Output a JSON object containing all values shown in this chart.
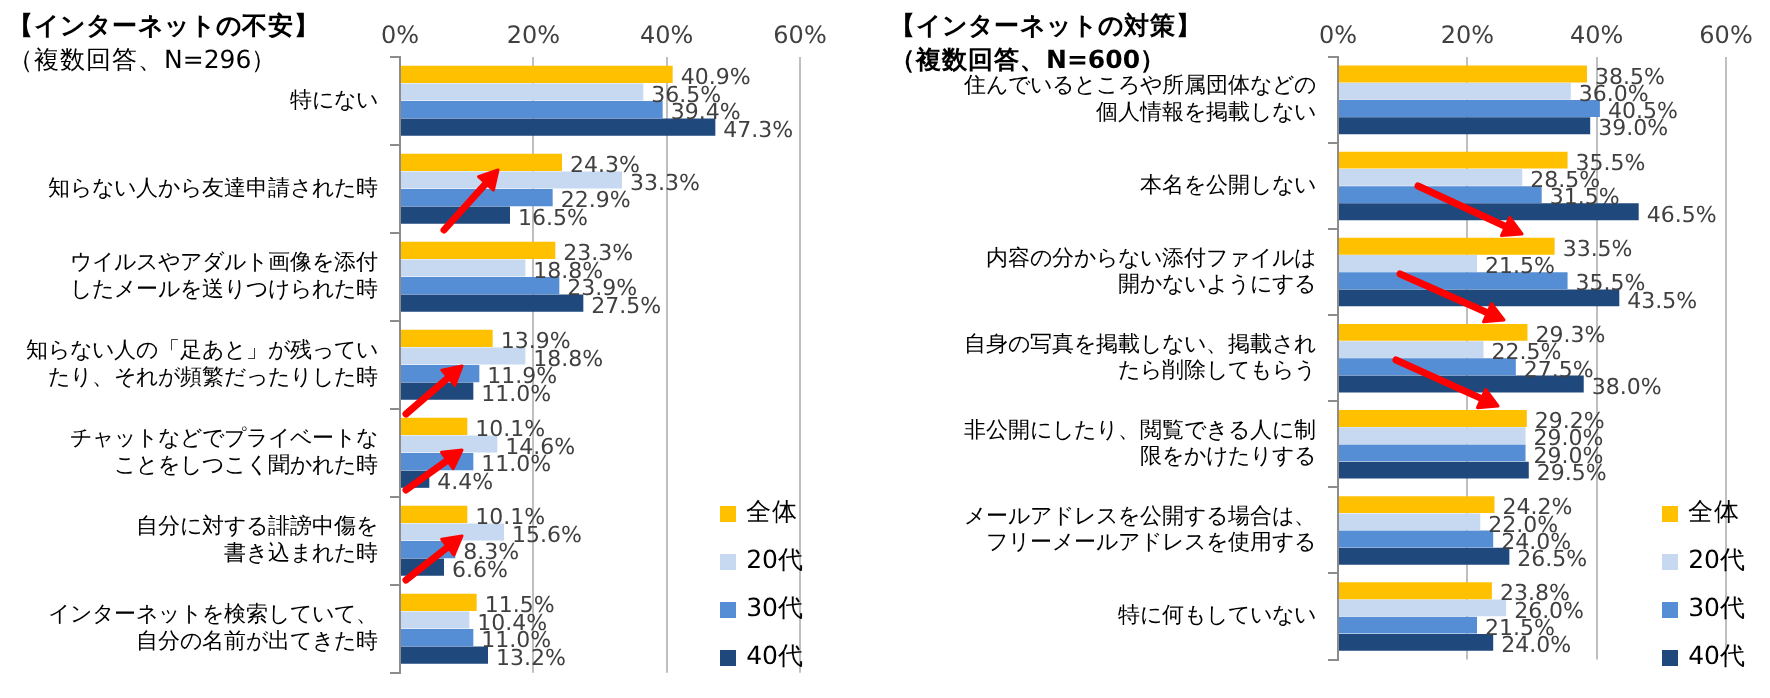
{
  "chart_data": [
    {
      "type": "bar",
      "orientation": "horizontal",
      "title": "【インターネットの不安】",
      "subtitle": "（複数回答、N=296）",
      "categories": [
        "特にない",
        "知らない人から友達申請された時",
        "ウイルスやアダルト画像を添付したメールを送りつけられた時",
        "知らない人の「足あと」が残っていたり、それが頻繁だったりした時",
        "チャットなどでプライベートなことをしつこく聞かれた時",
        "自分に対する誹謗中傷を書き込まれた時",
        "インターネットを検索していて、自分の名前が出てきた時"
      ],
      "series": [
        {
          "name": "全体",
          "color": "#ffc000",
          "values": [
            40.9,
            24.3,
            23.3,
            13.9,
            10.1,
            10.1,
            11.5
          ],
          "value_labels": [
            "40.9%",
            "24.3%",
            "23.3%",
            "13.9%",
            "10.1%",
            "10.1%",
            "11.5%"
          ]
        },
        {
          "name": "20代",
          "color": "#c6d9f1",
          "values": [
            36.5,
            33.3,
            18.8,
            18.8,
            14.6,
            15.6,
            10.4
          ],
          "value_labels": [
            "36.5%",
            "33.3%",
            "18.8%",
            "18.8%",
            "14.6%",
            "15.6%",
            "10.4%"
          ]
        },
        {
          "name": "30代",
          "color": "#558ed5",
          "values": [
            39.4,
            22.9,
            23.9,
            11.9,
            11.0,
            8.3,
            11.0
          ],
          "value_labels": [
            "39.4%",
            "22.9%",
            "23.9%",
            "11.9%",
            "11.0%",
            "8.3%",
            "11.0%"
          ]
        },
        {
          "name": "40代",
          "color": "#1f497d",
          "values": [
            47.3,
            16.5,
            27.5,
            11.0,
            4.4,
            6.6,
            13.2
          ],
          "value_labels": [
            "47.3%",
            "16.5%",
            "27.5%",
            "11.0%",
            "4.4%",
            "6.6%",
            "13.2%"
          ]
        }
      ],
      "xlim": [
        0,
        60
      ],
      "xticks": [
        {
          "value": 0,
          "label": "0%"
        },
        {
          "value": 20,
          "label": "20%"
        },
        {
          "value": 40,
          "label": "40%"
        },
        {
          "value": 60,
          "label": "60%"
        }
      ],
      "grid": "x",
      "legend": "bottom right"
    },
    {
      "type": "bar",
      "orientation": "horizontal",
      "title": "【インターネットの対策】",
      "subtitle": "（複数回答、N=600）",
      "categories": [
        "住んでいるところや所属団体などの個人情報を掲載しない",
        "本名を公開しない",
        "内容の分からない添付ファイルは開かないようにする",
        "自身の写真を掲載しない、掲載されたら削除してもらう",
        "非公開にしたり、閲覧できる人に制限をかけたりする",
        "メールアドレスを公開する場合は、フリーメールアドレスを使用する",
        "特に何もしていない"
      ],
      "series": [
        {
          "name": "全体",
          "color": "#ffc000",
          "values": [
            38.5,
            35.5,
            33.5,
            29.3,
            29.2,
            24.2,
            23.8
          ],
          "value_labels": [
            "38.5%",
            "35.5%",
            "33.5%",
            "29.3%",
            "29.2%",
            "24.2%",
            "23.8%"
          ]
        },
        {
          "name": "20代",
          "color": "#c6d9f1",
          "values": [
            36.0,
            28.5,
            21.5,
            22.5,
            29.0,
            22.0,
            26.0
          ],
          "value_labels": [
            "36.0%",
            "28.5%",
            "21.5%",
            "22.5%",
            "29.0%",
            "22.0%",
            "26.0%"
          ]
        },
        {
          "name": "30代",
          "color": "#558ed5",
          "values": [
            40.5,
            31.5,
            35.5,
            27.5,
            29.0,
            24.0,
            21.5
          ],
          "value_labels": [
            "40.5%",
            "31.5%",
            "35.5%",
            "27.5%",
            "29.0%",
            "24.0%",
            "21.5%"
          ]
        },
        {
          "name": "40代",
          "color": "#1f497d",
          "values": [
            39.0,
            46.5,
            43.5,
            38.0,
            29.5,
            26.5,
            24.0
          ],
          "value_labels": [
            "39.0%",
            "46.5%",
            "43.5%",
            "38.0%",
            "29.5%",
            "26.5%",
            "24.0%"
          ]
        }
      ],
      "xlim": [
        0,
        60
      ],
      "xticks": [
        {
          "value": 0,
          "label": "0%"
        },
        {
          "value": 20,
          "label": "20%"
        },
        {
          "value": 40,
          "label": "40%"
        },
        {
          "value": 60,
          "label": "60%"
        }
      ],
      "grid": "x",
      "legend": "bottom right"
    }
  ]
}
